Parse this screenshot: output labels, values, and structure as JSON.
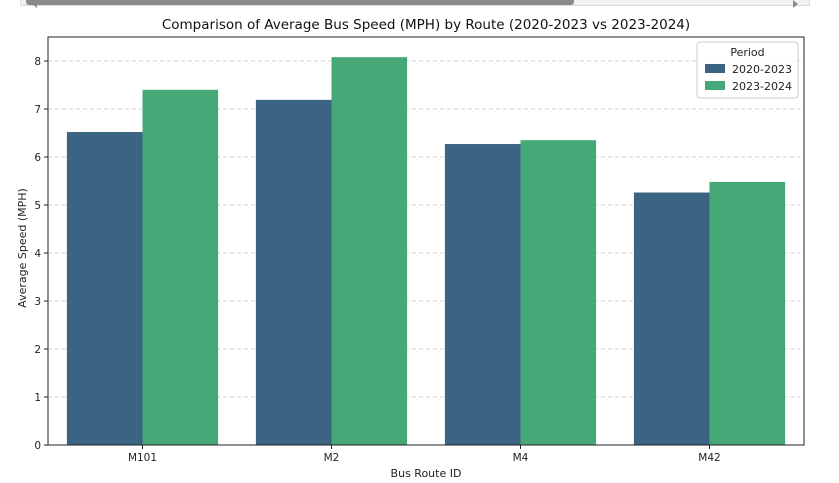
{
  "chart_data": {
    "type": "bar",
    "title": "Comparison of Average Bus Speed (MPH) by Route (2020-2023 vs 2023-2024)",
    "xlabel": "Bus Route ID",
    "ylabel": "Average Speed (MPH)",
    "categories": [
      "M101",
      "M2",
      "M4",
      "M42"
    ],
    "series": [
      {
        "name": "2020-2023",
        "values": [
          6.52,
          7.19,
          6.27,
          5.26
        ],
        "color": "#3b6482"
      },
      {
        "name": "2023-2024",
        "values": [
          7.4,
          8.08,
          6.35,
          5.48
        ],
        "color": "#46a876"
      }
    ],
    "ylim": [
      0,
      8.5
    ],
    "yticks": [
      0,
      1,
      2,
      3,
      4,
      5,
      6,
      7,
      8
    ],
    "grid": true,
    "legend": {
      "title": "Period",
      "position": "top-right"
    }
  }
}
